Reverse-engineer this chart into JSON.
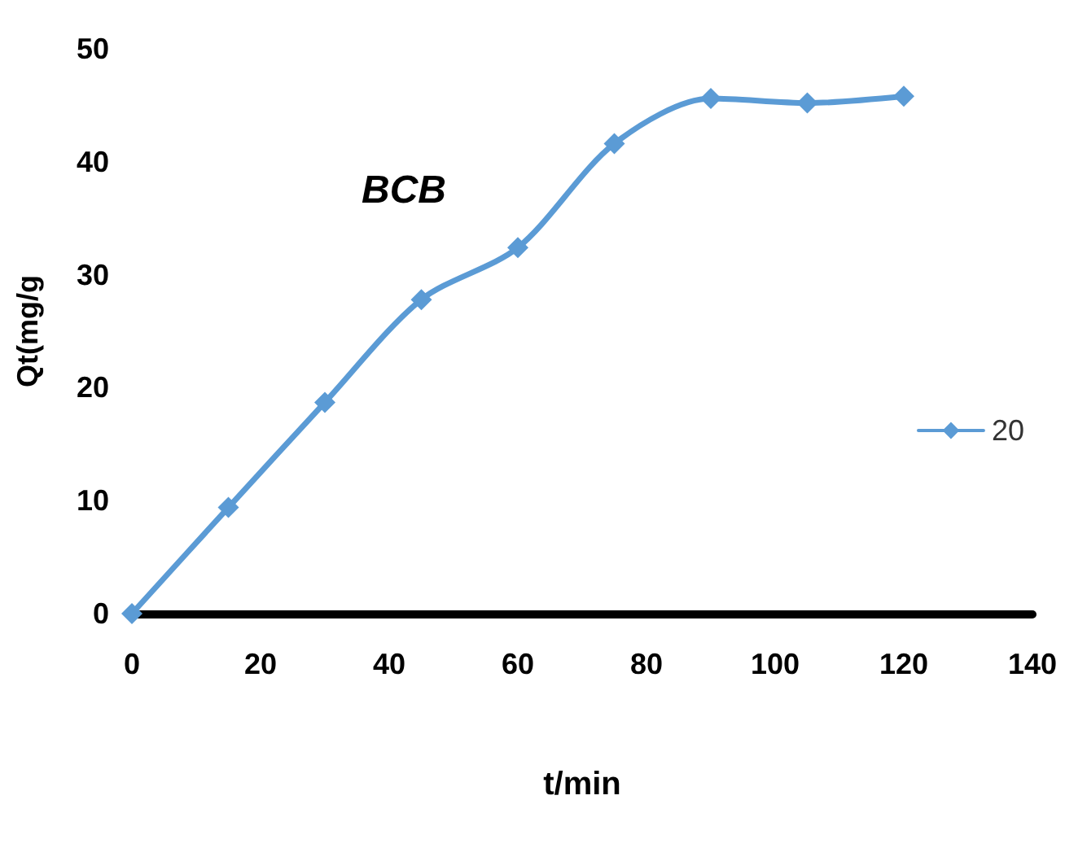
{
  "chart_data": {
    "type": "line",
    "xlabel": "t/min",
    "ylabel": "Qt(mg/g",
    "annotations": [
      "BCB"
    ],
    "x": [
      0,
      15,
      30,
      45,
      60,
      75,
      90,
      105,
      120
    ],
    "series": [
      {
        "name": "20",
        "color": "#5b9bd5",
        "values": [
          0,
          9.4,
          18.7,
          27.8,
          32.4,
          41.6,
          45.6,
          45.2,
          45.8
        ]
      }
    ],
    "xlim": [
      0,
      140
    ],
    "xticks": [
      0,
      20,
      40,
      60,
      80,
      100,
      120,
      140
    ],
    "ylim": [
      0,
      50
    ],
    "yticks": [
      0,
      10,
      20,
      30,
      40,
      50
    ],
    "grid": false,
    "legend": "right",
    "marker": "diamond",
    "line_style": "solid"
  }
}
